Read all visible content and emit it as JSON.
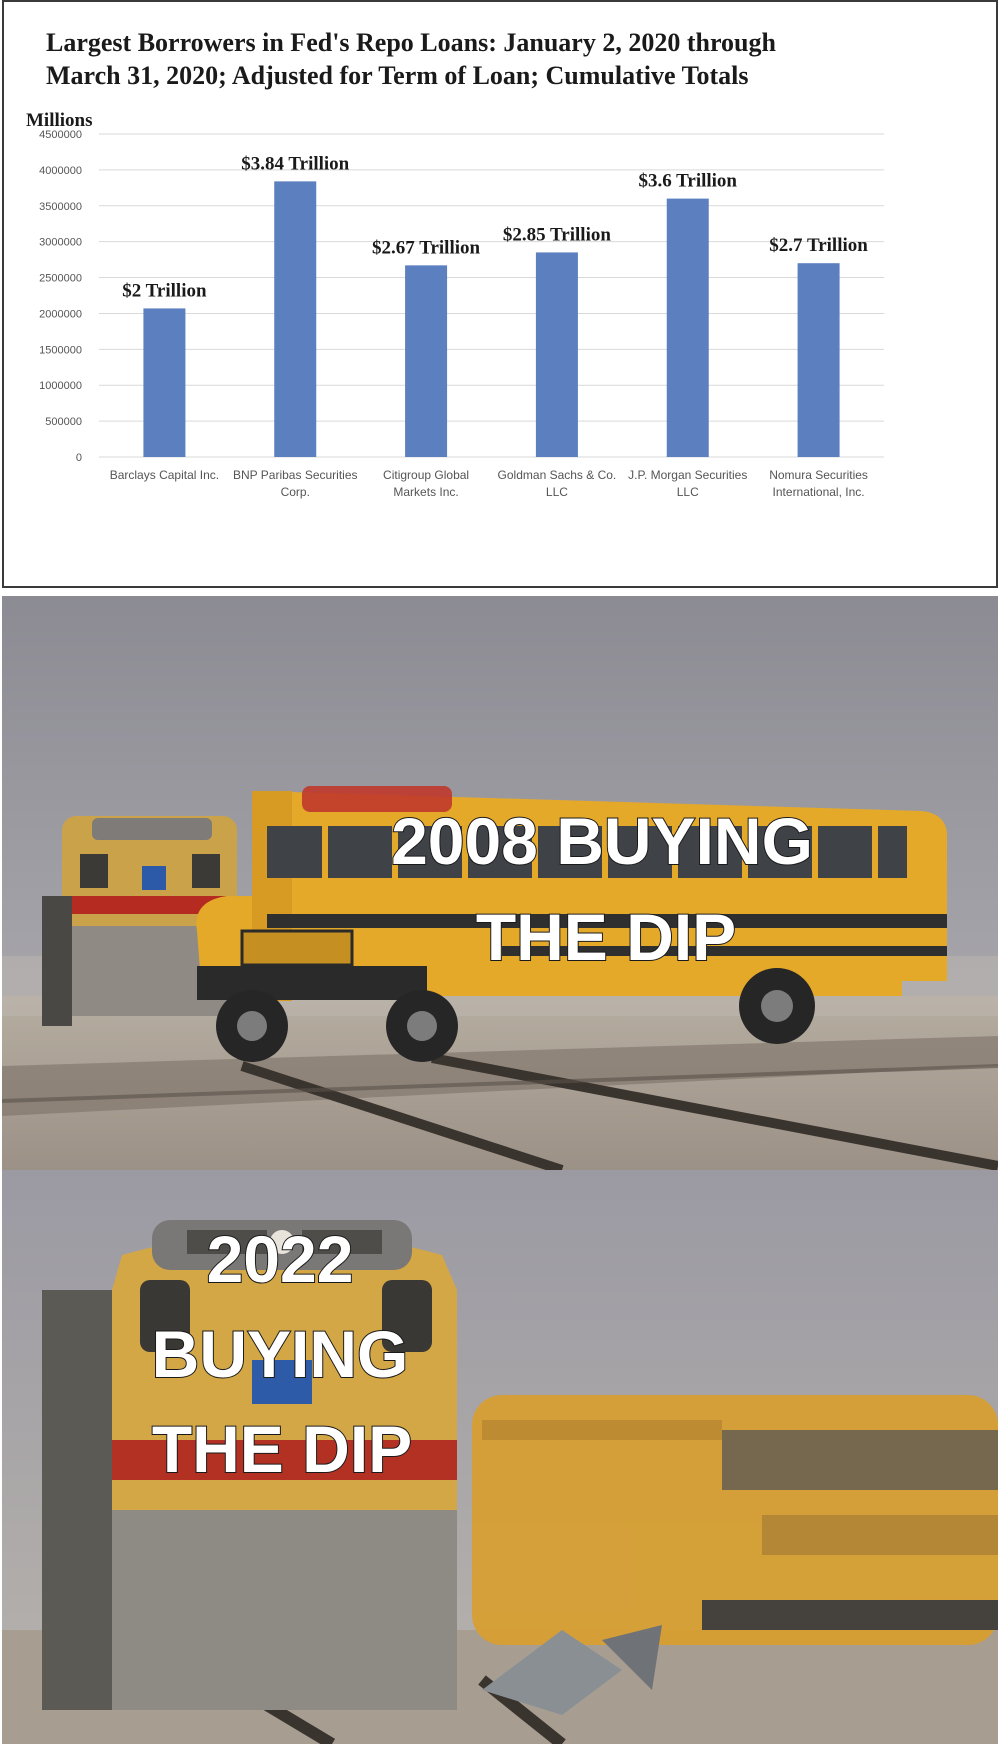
{
  "chart_data": {
    "type": "bar",
    "title_lines": [
      "Largest Borrowers in Fed's Repo Loans: January 2, 2020 through",
      "March 31, 2020; Adjusted for Term of Loan; Cumulative Totals"
    ],
    "ylabel": "Millions",
    "ylim": [
      0,
      4500000
    ],
    "yticks": [
      "0",
      "500000",
      "1000000",
      "1500000",
      "2000000",
      "2500000",
      "3000000",
      "3500000",
      "4000000",
      "4500000"
    ],
    "categories": [
      [
        "Barclays Capital Inc."
      ],
      [
        "BNP Paribas Securities",
        "Corp."
      ],
      [
        "Citigroup Global",
        "Markets Inc."
      ],
      [
        "Goldman Sachs & Co.",
        "LLC"
      ],
      [
        "J.P. Morgan Securities",
        "LLC"
      ],
      [
        "Nomura Securities",
        "International, Inc."
      ]
    ],
    "values": [
      2070000,
      3840000,
      2670000,
      2850000,
      3600000,
      2700000
    ],
    "data_labels": [
      "$2 Trillion",
      "$3.84 Trillion",
      "$2.67 Trillion",
      "$2.85 Trillion",
      "$3.6 Trillion",
      "$2.7 Trillion"
    ],
    "grid": true,
    "legend": "none",
    "bar_color": "#5b7fbf"
  },
  "meme": {
    "panel_top_caption": [
      "2008 BUYING",
      "THE DIP"
    ],
    "panel_bottom_caption": [
      "2022",
      "BUYING",
      "THE DIP"
    ]
  }
}
